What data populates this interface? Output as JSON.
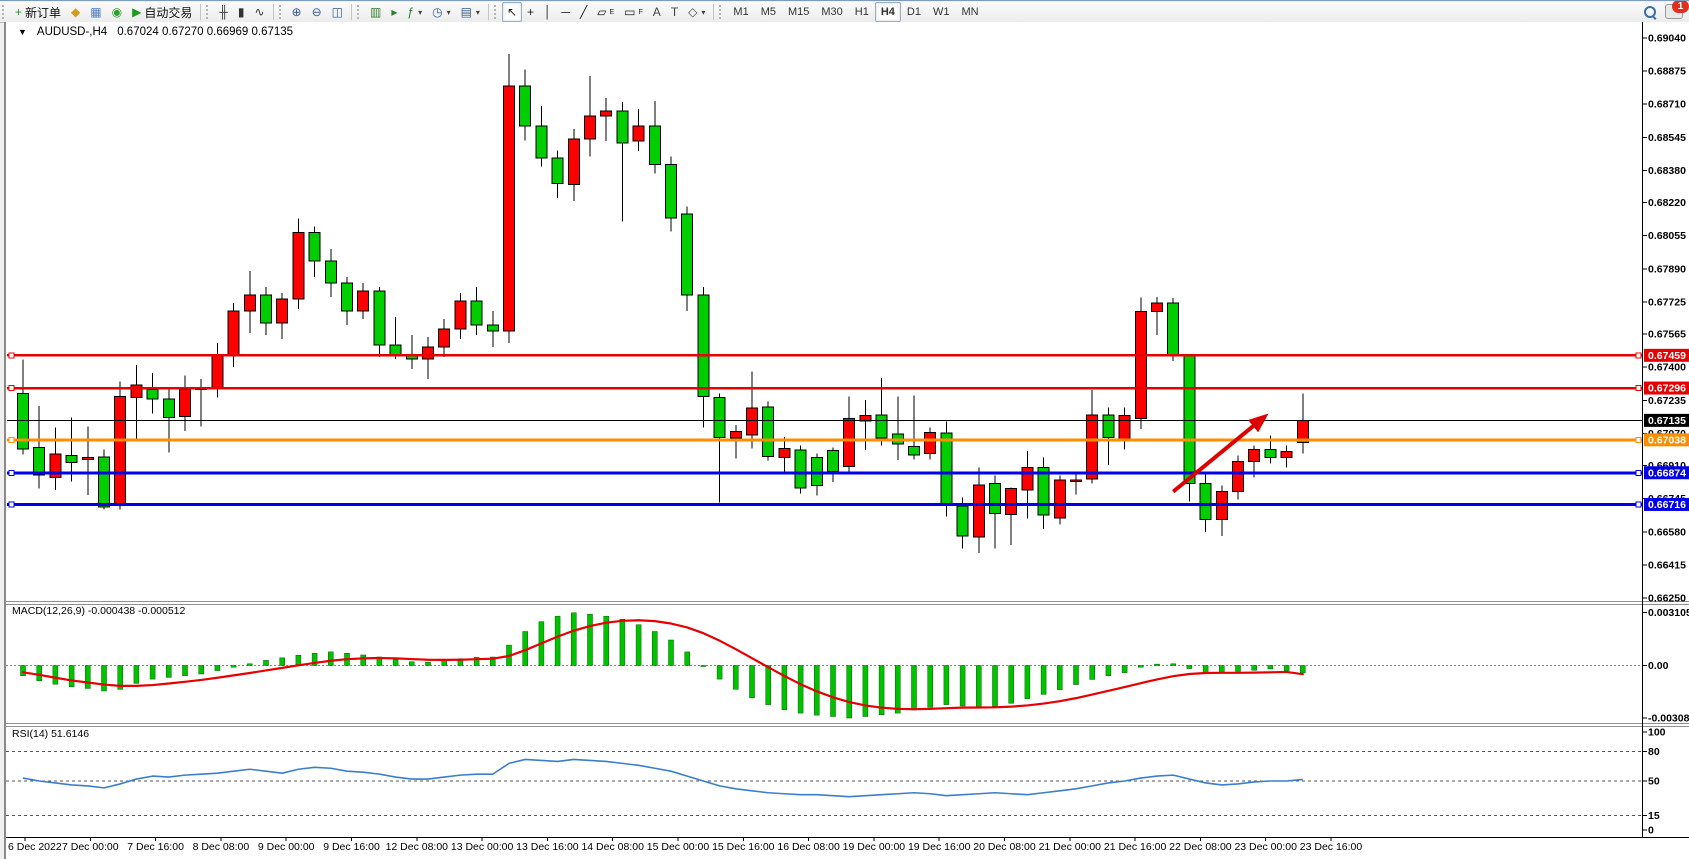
{
  "window": {
    "title_symbol": "AUDUSD-,H4",
    "title_ohlc": "0.67024 0.67270 0.66969 0.67135",
    "dropdown_glyph": "▼"
  },
  "toolbar": {
    "groups": [
      {
        "name": "trade",
        "buttons": [
          {
            "name": "new-order-button",
            "icon": "new-order-icon",
            "glyph": "+",
            "color": "#1a9c1a",
            "label": "新订单"
          },
          {
            "name": "styler-button",
            "icon": "styler-icon",
            "glyph": "◆",
            "color": "#d49c1a"
          },
          {
            "name": "charts-window-button",
            "icon": "charts-icon",
            "glyph": "▦",
            "color": "#4a7dc8"
          },
          {
            "name": "signals-button",
            "icon": "signals-icon",
            "glyph": "◉",
            "color": "#2aa02a"
          },
          {
            "name": "auto-trading-button",
            "icon": "autotrading-icon",
            "glyph": "▶",
            "color": "#18a018",
            "label": "自动交易"
          }
        ]
      },
      {
        "name": "chart-type",
        "buttons": [
          {
            "name": "bar-chart-button",
            "icon": "ohlc-bars-icon",
            "glyph": "╫",
            "color": "#333333"
          },
          {
            "name": "candlestick-chart-button",
            "icon": "candlestick-icon",
            "glyph": "▮",
            "color": "#333333"
          },
          {
            "name": "line-chart-button",
            "icon": "line-chart-icon",
            "glyph": "∿",
            "color": "#333333"
          }
        ]
      },
      {
        "name": "zoom",
        "buttons": [
          {
            "name": "zoom-in-button",
            "icon": "zoom-in-icon",
            "glyph": "⊕",
            "color": "#335b99"
          },
          {
            "name": "zoom-out-button",
            "icon": "zoom-out-icon",
            "glyph": "⊖",
            "color": "#335b99"
          },
          {
            "name": "tile-windows-button",
            "icon": "tile-windows-icon",
            "glyph": "◫",
            "color": "#335b99"
          }
        ]
      },
      {
        "name": "arrange",
        "buttons": [
          {
            "name": "auto-arrange-button",
            "icon": "auto-arrange-icon",
            "glyph": "▥",
            "color": "#2a7d2a"
          },
          {
            "name": "chart-shift-button",
            "icon": "chart-shift-icon",
            "glyph": "▸",
            "color": "#2a7d2a"
          },
          {
            "name": "add-indicator-button",
            "icon": "add-indicator-icon",
            "glyph": "ƒ",
            "color": "#2a7d2a",
            "dropdown": true
          },
          {
            "name": "periodicity-button",
            "icon": "clock-icon",
            "glyph": "◷",
            "color": "#335b99",
            "dropdown": true
          },
          {
            "name": "templates-button",
            "icon": "template-icon",
            "glyph": "▤",
            "color": "#335b99",
            "dropdown": true
          }
        ]
      },
      {
        "name": "draw",
        "buttons": [
          {
            "name": "cursor-button",
            "icon": "cursor-icon",
            "glyph": "↖",
            "color": "#222222",
            "active": true
          },
          {
            "name": "crosshair-button",
            "icon": "crosshair-icon",
            "glyph": "+",
            "color": "#222222"
          },
          {
            "name": "vertical-line-button",
            "icon": "vertical-line-icon",
            "glyph": "│",
            "color": "#222222"
          },
          {
            "name": "horizontal-line-button",
            "icon": "horizontal-line-icon",
            "glyph": "─",
            "color": "#222222"
          },
          {
            "name": "trendline-button",
            "icon": "trendline-icon",
            "glyph": "╱",
            "color": "#222222"
          },
          {
            "name": "equidistant-channel-button",
            "icon": "channel-icon",
            "glyph": "▱",
            "color": "#222222",
            "sub": "E"
          },
          {
            "name": "fibonacci-button",
            "icon": "fibonacci-icon",
            "glyph": "▭",
            "color": "#222222",
            "sub": "F"
          },
          {
            "name": "text-button",
            "icon": "text-a-icon",
            "glyph": "A",
            "color": "#444444"
          },
          {
            "name": "text-label-button",
            "icon": "text-label-icon",
            "glyph": "T",
            "color": "#444444"
          },
          {
            "name": "arrows-button",
            "icon": "arrow-shapes-icon",
            "glyph": "◇",
            "color": "#444444",
            "dropdown": true
          }
        ]
      }
    ],
    "timeframes": {
      "options": [
        "M1",
        "M5",
        "M15",
        "M30",
        "H1",
        "H4",
        "D1",
        "W1",
        "MN"
      ],
      "active": "H4"
    },
    "right": {
      "notification_count": "1"
    }
  },
  "indicators": {
    "macd_label": "MACD(12,26,9) -0.000438 -0.000512",
    "rsi_label": "RSI(14) 51.6146"
  },
  "axis": {
    "price_ticks": [
      "0.69040",
      "0.68875",
      "0.68710",
      "0.68545",
      "0.68380",
      "0.68220",
      "0.68055",
      "0.67890",
      "0.67725",
      "0.67565",
      "0.67400",
      "0.67235",
      "0.67070",
      "0.66910",
      "0.66745",
      "0.66580",
      "0.66415",
      "0.66250"
    ],
    "time_labels": [
      "6 Dec 2022",
      "7 Dec 00:00",
      "7 Dec 16:00",
      "8 Dec 08:00",
      "9 Dec 00:00",
      "9 Dec 16:00",
      "12 Dec 08:00",
      "13 Dec 00:00",
      "13 Dec 16:00",
      "14 Dec 08:00",
      "15 Dec 00:00",
      "15 Dec 16:00",
      "16 Dec 08:00",
      "19 Dec 00:00",
      "19 Dec 16:00",
      "20 Dec 08:00",
      "21 Dec 00:00",
      "21 Dec 16:00",
      "22 Dec 08:00",
      "23 Dec 00:00",
      "23 Dec 16:00"
    ],
    "macd_ticks": [
      "0.003105",
      "0.00",
      "-0.003089"
    ],
    "rsi_ticks": [
      "100",
      "80",
      "50",
      "15",
      "0"
    ],
    "rsi_dashed_levels": [
      80,
      50,
      15
    ]
  },
  "levels": [
    {
      "name": "resistance-line-1",
      "price": 0.67459,
      "label": "0.67459",
      "color": "#e80000",
      "width": 2.5
    },
    {
      "name": "resistance-line-2",
      "price": 0.67296,
      "label": "0.67296",
      "color": "#e80000",
      "width": 2.5
    },
    {
      "name": "pivot-line",
      "price": 0.67038,
      "label": "0.67038",
      "color": "#ff8d00",
      "width": 3
    },
    {
      "name": "support-line-1",
      "price": 0.66874,
      "label": "0.66874",
      "color": "#0000e8",
      "width": 3
    },
    {
      "name": "support-line-2",
      "price": 0.66716,
      "label": "0.66716",
      "color": "#0000e8",
      "width": 3
    }
  ],
  "current_price": {
    "value": 0.67135,
    "label": "0.67135",
    "color": "#000000"
  },
  "chart_data": {
    "type": "candlestick",
    "symbol": "AUDUSD",
    "period": "H4",
    "up_color": "#fe0000",
    "down_color": "#00ce00",
    "price_range": [
      0.6625,
      0.6904
    ],
    "macd_range": [
      -0.003089,
      0.003105
    ],
    "candles": [
      [
        0.6727,
        0.67437,
        0.66965,
        0.66993
      ],
      [
        0.67,
        0.67206,
        0.66796,
        0.66863
      ],
      [
        0.6685,
        0.671,
        0.66788,
        0.66967
      ],
      [
        0.6696,
        0.67149,
        0.6683,
        0.66924
      ],
      [
        0.6694,
        0.67104,
        0.66763,
        0.6695
      ],
      [
        0.66953,
        0.6699,
        0.66691,
        0.66703
      ],
      [
        0.66711,
        0.67329,
        0.66691,
        0.67254
      ],
      [
        0.67249,
        0.67411,
        0.67037,
        0.67312
      ],
      [
        0.6729,
        0.6737,
        0.6717,
        0.67242
      ],
      [
        0.67242,
        0.673,
        0.66975,
        0.67149
      ],
      [
        0.67154,
        0.67358,
        0.67082,
        0.6729
      ],
      [
        0.6729,
        0.6734,
        0.67104,
        0.67296
      ],
      [
        0.67296,
        0.6752,
        0.6725,
        0.6746
      ],
      [
        0.6746,
        0.6772,
        0.674,
        0.6768
      ],
      [
        0.6768,
        0.6788,
        0.6757,
        0.6776
      ],
      [
        0.6776,
        0.678,
        0.6756,
        0.6762
      ],
      [
        0.6762,
        0.6777,
        0.6754,
        0.6774
      ],
      [
        0.6774,
        0.6814,
        0.6769,
        0.6807
      ],
      [
        0.6807,
        0.681,
        0.6785,
        0.6793
      ],
      [
        0.6793,
        0.6799,
        0.6775,
        0.6782
      ],
      [
        0.6782,
        0.6785,
        0.6761,
        0.6768
      ],
      [
        0.6768,
        0.6782,
        0.6764,
        0.6778
      ],
      [
        0.6778,
        0.678,
        0.6745,
        0.6751
      ],
      [
        0.6751,
        0.6765,
        0.6744,
        0.6746
      ],
      [
        0.6746,
        0.6756,
        0.6739,
        0.6744
      ],
      [
        0.6744,
        0.6755,
        0.6734,
        0.675
      ],
      [
        0.675,
        0.6764,
        0.6745,
        0.6759
      ],
      [
        0.6759,
        0.6777,
        0.6754,
        0.6773
      ],
      [
        0.6773,
        0.678,
        0.6756,
        0.6761
      ],
      [
        0.6761,
        0.6768,
        0.675,
        0.6758
      ],
      [
        0.6758,
        0.6896,
        0.6752,
        0.688
      ],
      [
        0.688,
        0.68884,
        0.68529,
        0.68601
      ],
      [
        0.68601,
        0.687,
        0.68401,
        0.68441
      ],
      [
        0.68441,
        0.6848,
        0.68242,
        0.68316
      ],
      [
        0.68311,
        0.68586,
        0.68227,
        0.68536
      ],
      [
        0.68536,
        0.6885,
        0.6845,
        0.68651
      ],
      [
        0.68651,
        0.68741,
        0.68526,
        0.68676
      ],
      [
        0.68676,
        0.6872,
        0.68127,
        0.68516
      ],
      [
        0.68526,
        0.68686,
        0.68476,
        0.68601
      ],
      [
        0.68601,
        0.68726,
        0.68366,
        0.68411
      ],
      [
        0.68411,
        0.6845,
        0.68077,
        0.68142
      ],
      [
        0.68162,
        0.682,
        0.6768,
        0.6776
      ],
      [
        0.6776,
        0.678,
        0.671,
        0.67254
      ],
      [
        0.6725,
        0.6727,
        0.66725,
        0.67049
      ],
      [
        0.67046,
        0.67112,
        0.66946,
        0.67079
      ],
      [
        0.67063,
        0.67378,
        0.66996,
        0.67196
      ],
      [
        0.67201,
        0.6723,
        0.66935,
        0.66955
      ],
      [
        0.6695,
        0.67053,
        0.66868,
        0.66994
      ],
      [
        0.66987,
        0.6701,
        0.6677,
        0.66799
      ],
      [
        0.6695,
        0.6697,
        0.6676,
        0.6681
      ],
      [
        0.66984,
        0.67,
        0.66829,
        0.66879
      ],
      [
        0.66904,
        0.67253,
        0.6688,
        0.67145
      ],
      [
        0.67131,
        0.67237,
        0.66987,
        0.67158
      ],
      [
        0.67162,
        0.67345,
        0.67011,
        0.67046
      ],
      [
        0.67068,
        0.67253,
        0.66938,
        0.67018
      ],
      [
        0.67004,
        0.67258,
        0.6694,
        0.66963
      ],
      [
        0.6697,
        0.671,
        0.6694,
        0.67075
      ],
      [
        0.67071,
        0.67129,
        0.66655,
        0.66714
      ],
      [
        0.66709,
        0.6675,
        0.66497,
        0.6656
      ],
      [
        0.66555,
        0.669,
        0.66475,
        0.66813
      ],
      [
        0.66821,
        0.6686,
        0.66497,
        0.66671
      ],
      [
        0.66666,
        0.668,
        0.66514,
        0.66796
      ],
      [
        0.66788,
        0.66982,
        0.66647,
        0.66899
      ],
      [
        0.66899,
        0.6695,
        0.66593,
        0.66663
      ],
      [
        0.66649,
        0.6686,
        0.66616,
        0.66837
      ],
      [
        0.6683,
        0.66879,
        0.66766,
        0.66838
      ],
      [
        0.66843,
        0.67287,
        0.6682,
        0.67162
      ],
      [
        0.67162,
        0.672,
        0.66913,
        0.67049
      ],
      [
        0.67043,
        0.67199,
        0.6699,
        0.67159
      ],
      [
        0.67145,
        0.67748,
        0.67092,
        0.67678
      ],
      [
        0.67678,
        0.6775,
        0.6756,
        0.6772
      ],
      [
        0.6772,
        0.67745,
        0.6743,
        0.67455
      ],
      [
        0.67455,
        0.6746,
        0.6673,
        0.66821
      ],
      [
        0.66821,
        0.6687,
        0.6658,
        0.6664
      ],
      [
        0.6664,
        0.6681,
        0.6656,
        0.6678
      ],
      [
        0.6678,
        0.6696,
        0.6674,
        0.6693
      ],
      [
        0.6693,
        0.6701,
        0.6685,
        0.6699
      ],
      [
        0.6699,
        0.6706,
        0.6692,
        0.66951
      ],
      [
        0.66951,
        0.6701,
        0.669,
        0.6698
      ],
      [
        0.67024,
        0.6727,
        0.66969,
        0.67135
      ]
    ],
    "macd": {
      "histogram": [
        -0.0006,
        -0.0009,
        -0.0011,
        -0.00125,
        -0.00135,
        -0.0015,
        -0.0014,
        -0.00105,
        -0.0008,
        -0.0007,
        -0.0006,
        -0.0005,
        -0.0003,
        -0.0001,
        0.0001,
        0.0003,
        0.00045,
        0.0006,
        0.00072,
        0.0008,
        0.00072,
        0.00062,
        0.0005,
        0.00035,
        0.00022,
        0.0002,
        0.00028,
        0.0004,
        0.00048,
        0.0005,
        0.0012,
        0.002,
        0.00258,
        0.0029,
        0.0031,
        0.00302,
        0.0029,
        0.00272,
        0.0024,
        0.002,
        0.0015,
        0.0008,
        0.0,
        -0.0008,
        -0.0014,
        -0.0019,
        -0.0023,
        -0.0026,
        -0.0028,
        -0.00292,
        -0.003,
        -0.00309,
        -0.003,
        -0.0029,
        -0.0028,
        -0.00262,
        -0.00245,
        -0.0023,
        -0.00238,
        -0.00248,
        -0.0024,
        -0.00222,
        -0.00195,
        -0.0017,
        -0.00142,
        -0.00112,
        -0.00082,
        -0.0006,
        -0.00042,
        -0.0001,
        8e-05,
        0.0001,
        -0.00018,
        -0.0004,
        -0.00042,
        -0.00035,
        -0.00028,
        -0.0002,
        -0.0003,
        -0.00044
      ],
      "signal": [
        -0.0004,
        -0.00055,
        -0.00072,
        -0.00088,
        -0.001,
        -0.00112,
        -0.0012,
        -0.0012,
        -0.00115,
        -0.00106,
        -0.00096,
        -0.00085,
        -0.00072,
        -0.00058,
        -0.00044,
        -0.00029,
        -0.00014,
        1e-05,
        0.00015,
        0.00028,
        0.00037,
        0.00042,
        0.00044,
        0.00042,
        0.00038,
        0.00034,
        0.00033,
        0.00034,
        0.00037,
        0.0004,
        0.00056,
        0.0009,
        0.0013,
        0.0017,
        0.00205,
        0.00232,
        0.00252,
        0.00263,
        0.00266,
        0.00261,
        0.00247,
        0.00224,
        0.0019,
        0.00146,
        0.00096,
        0.00043,
        -0.0001,
        -0.00062,
        -0.0011,
        -0.00152,
        -0.00187,
        -0.00215,
        -0.00235,
        -0.00248,
        -0.00255,
        -0.00257,
        -0.00255,
        -0.00251,
        -0.00248,
        -0.00247,
        -0.00246,
        -0.00242,
        -0.00235,
        -0.00224,
        -0.0021,
        -0.00192,
        -0.00171,
        -0.00149,
        -0.00127,
        -0.00104,
        -0.00082,
        -0.00063,
        -0.0005,
        -0.00044,
        -0.00043,
        -0.00043,
        -0.00042,
        -0.0004,
        -0.00038,
        -0.00051
      ],
      "hist_color": "#00c300",
      "signal_color": "#e60000"
    },
    "rsi": {
      "values": [
        53,
        50,
        48,
        46,
        45,
        43,
        47,
        52,
        55,
        54,
        56,
        57,
        58,
        60,
        62,
        60,
        58,
        62,
        64,
        63,
        60,
        59,
        57,
        54,
        52,
        52,
        54,
        56,
        57,
        57,
        68,
        72,
        71,
        70,
        72,
        71,
        70,
        68,
        66,
        63,
        60,
        55,
        50,
        45,
        42,
        40,
        38,
        37,
        36,
        36,
        35,
        34,
        35,
        36,
        37,
        38,
        37,
        35,
        36,
        37,
        38,
        37,
        36,
        38,
        40,
        42,
        45,
        48,
        50,
        53,
        55,
        56,
        52,
        48,
        46,
        47,
        49,
        50,
        50,
        51.6
      ],
      "color": "#3c7ecb"
    }
  },
  "annotations": {
    "arrow": {
      "from_bar": 71,
      "from_price": 0.6678,
      "to_bar": 76.6,
      "to_price": 0.6715,
      "color": "#dd0000"
    }
  }
}
